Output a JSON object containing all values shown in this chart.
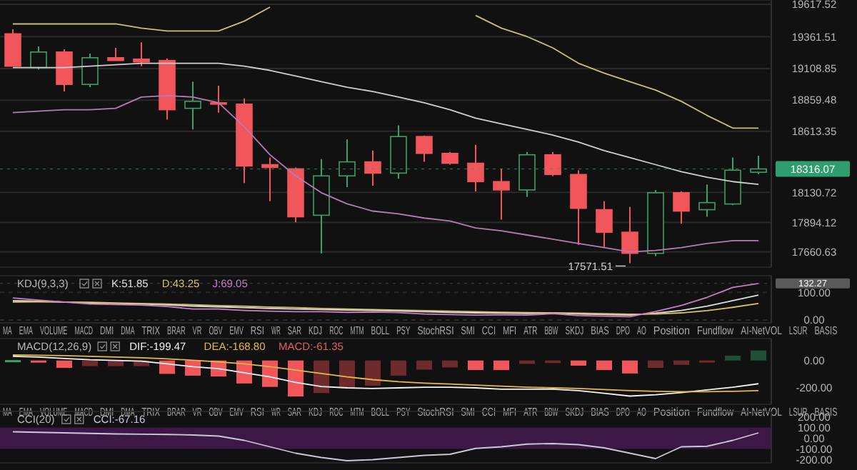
{
  "chart_data": [
    {
      "type": "candlestick",
      "categories": [
        null,
        null,
        null,
        null,
        null,
        null,
        null,
        null,
        null,
        null,
        null,
        null,
        null,
        null,
        null,
        null,
        null,
        null,
        null,
        null,
        null,
        null,
        null,
        null,
        null,
        null,
        null,
        null,
        null,
        null
      ],
      "ohlc": [
        [
          19384,
          19420,
          19128,
          19128
        ],
        [
          19117,
          19284,
          19100,
          19240
        ],
        [
          19240,
          19262,
          18928,
          18984
        ],
        [
          18984,
          19228,
          18962,
          19195
        ],
        [
          19195,
          19273,
          19173,
          19173
        ],
        [
          19184,
          19317,
          19128,
          19162
        ],
        [
          19173,
          19190,
          18706,
          18784
        ],
        [
          18795,
          19006,
          18628,
          18850
        ],
        [
          18839,
          18973,
          18761,
          18828
        ],
        [
          18828,
          18873,
          18205,
          18339
        ],
        [
          18350,
          18406,
          18061,
          18328
        ],
        [
          18317,
          18328,
          17894,
          17938
        ],
        [
          17950,
          18394,
          17649,
          18261
        ],
        [
          18261,
          18550,
          18172,
          18372
        ],
        [
          18372,
          18461,
          18183,
          18283
        ],
        [
          18283,
          18661,
          18239,
          18572
        ],
        [
          18572,
          18580,
          18372,
          18439
        ],
        [
          18439,
          18450,
          18350,
          18361
        ],
        [
          18361,
          18506,
          18139,
          18216
        ],
        [
          18216,
          18317,
          17916,
          18150
        ],
        [
          18150,
          18450,
          18094,
          18428
        ],
        [
          18428,
          18450,
          18260,
          18272
        ],
        [
          18272,
          18306,
          17716,
          18005
        ],
        [
          17994,
          18061,
          17694,
          17816
        ],
        [
          17816,
          18016,
          17571.51,
          17649
        ],
        [
          17649,
          18150,
          17627,
          18128
        ],
        [
          18128,
          18140,
          17883,
          17983
        ],
        [
          17994,
          18194,
          17938,
          18050
        ],
        [
          18039,
          18406,
          18030,
          18306
        ],
        [
          18290,
          18420,
          18275,
          18316.07
        ]
      ],
      "colors": [
        "#f0565a",
        "#3f9e6a",
        "#f0565a",
        "#3f9e6a",
        "#f0565a",
        "#f0565a",
        "#f0565a",
        "#3f9e6a",
        "#f0565a",
        "#f0565a",
        "#f0565a",
        "#f0565a",
        "#3f9e6a",
        "#3f9e6a",
        "#f0565a",
        "#3f9e6a",
        "#f0565a",
        "#f0565a",
        "#f0565a",
        "#f0565a",
        "#3f9e6a",
        "#f0565a",
        "#f0565a",
        "#f0565a",
        "#f0565a",
        "#3f9e6a",
        "#f0565a",
        "#3f9e6a",
        "#3f9e6a",
        "#3f9e6a"
      ],
      "series": [
        {
          "type": "line",
          "color": "#c9bf78",
          "values": [
            19462,
            19462,
            19462,
            19462,
            19462,
            19429,
            19406,
            19406,
            19406,
            19484,
            19595,
            null,
            null,
            null,
            null,
            null,
            null,
            null,
            19529,
            19429,
            19362,
            19273,
            19151,
            19073,
            19006,
            18939,
            18850,
            18739,
            18639,
            18639
          ]
        },
        {
          "type": "line",
          "color": "#cfcfcf",
          "values": [
            19117,
            19117,
            19117,
            19128,
            19140,
            19151,
            19151,
            19151,
            19151,
            19128,
            19095,
            19050,
            19006,
            18962,
            18928,
            18884,
            18839,
            18784,
            18717,
            18673,
            18628,
            18584,
            18528,
            18461,
            18406,
            18350,
            18294,
            18250,
            18216,
            18194
          ]
        },
        {
          "type": "line",
          "color": "#b77ab7",
          "values": [
            18761,
            18773,
            18784,
            18784,
            18795,
            18884,
            18895,
            18884,
            18839,
            18650,
            18428,
            18261,
            18128,
            18040,
            17983,
            17961,
            17928,
            17905,
            17850,
            17827,
            17794,
            17761,
            17727,
            17694,
            17661,
            17672,
            17694,
            17727,
            17749,
            17749
          ]
        }
      ],
      "ylim": [
        17540,
        19651
      ],
      "yticks": [
        19617.52,
        19361.51,
        19108.85,
        18859.48,
        18613.35,
        18130.72,
        17894.12,
        17660.63
      ],
      "ref_lines": [
        {
          "axis": "y",
          "value": 18316.07,
          "label": "18316.07",
          "color": "#2e9e6e"
        }
      ],
      "annotations": [
        "17571.51"
      ],
      "grid": "y"
    },
    {
      "type": "line",
      "title": "KDJ(9,3,3)",
      "categories": [
        null,
        null,
        null,
        null,
        null,
        null,
        null,
        null,
        null,
        null,
        null,
        null,
        null,
        null,
        null,
        null,
        null,
        null,
        null,
        null,
        null,
        null,
        null,
        null,
        null,
        null,
        null,
        null,
        null,
        null
      ],
      "series": [
        {
          "color": "#e0e0e0",
          "values": [
            70,
            68,
            65,
            62,
            60,
            58,
            55,
            50,
            48,
            45,
            42,
            40,
            38,
            36,
            35,
            33,
            30,
            28,
            26,
            25,
            24,
            25,
            22,
            20,
            18,
            25,
            35,
            50,
            70,
            90
          ]
        },
        {
          "color": "#d8c36a",
          "values": [
            65,
            66,
            65,
            64,
            62,
            60,
            58,
            55,
            52,
            50,
            47,
            45,
            42,
            40,
            38,
            36,
            34,
            32,
            30,
            28,
            27,
            26,
            25,
            23,
            21,
            22,
            26,
            34,
            46,
            60
          ]
        },
        {
          "color": "#c77dc7",
          "values": [
            80,
            72,
            65,
            58,
            56,
            54,
            49,
            40,
            40,
            35,
            32,
            30,
            30,
            28,
            29,
            27,
            22,
            20,
            18,
            19,
            18,
            23,
            16,
            14,
            12,
            31,
            53,
            82,
            118,
            132.27
          ]
        }
      ],
      "ylim": [
        -10,
        160
      ],
      "yticks": [
        {
          "value": 100,
          "label": "100.00"
        },
        {
          "value": 0,
          "label": "0.00"
        }
      ],
      "ref_lines": [
        {
          "axis": "y",
          "value": 132.27,
          "label": "132.27",
          "color": "#5a5a5a"
        }
      ],
      "annotations": [
        "K:51.85",
        "D:43.25",
        "J:69.05"
      ],
      "grid": "y"
    },
    {
      "type": "other",
      "annotations": [
        "MA",
        "EMA",
        "VOLUME",
        "MACD",
        "DMI",
        "DMA",
        "TRIX",
        "BRAR",
        "VR",
        "OBV",
        "EMV",
        "RSI",
        "WR",
        "SAR",
        "KDJ",
        "ROC",
        "MTM",
        "BOLL",
        "PSY",
        "StochRSI",
        "SMI",
        "CCI",
        "MFI",
        "ATR",
        "BBW",
        "SKDJ",
        "BIAS",
        "DPO",
        "AO",
        "Position",
        "Fundflow",
        "AI-NetVOL",
        "LSUR",
        "BASIS"
      ]
    },
    {
      "type": "bar",
      "categories": [
        null,
        null,
        null,
        null,
        null,
        null,
        null,
        null,
        null,
        null,
        null,
        null,
        null,
        null,
        null,
        null,
        null,
        null,
        null,
        null,
        null,
        null,
        null,
        null,
        null,
        null,
        null,
        null,
        null,
        null
      ],
      "series": [
        {
          "colors": [
            "#3f9e6a",
            "#f0565a",
            "#f0565a",
            "#6e2a2c",
            "#6e2a2c",
            "#6e2a2c",
            "#f0565a",
            "#f0565a",
            "#f0565a",
            "#f0565a",
            "#f0565a",
            "#f0565a",
            "#6e2a2c",
            "#6e2a2c",
            "#6e2a2c",
            "#6e2a2c",
            "#6e2a2c",
            "#6e2a2c",
            "#f0565a",
            "#f0565a",
            "#6e2a2c",
            "#6e2a2c",
            "#f0565a",
            "#f0565a",
            "#f0565a",
            "#6e2a2c",
            "#6e2a2c",
            "#6e2a2c",
            "#1f5037",
            "#1f5037"
          ],
          "values": [
            3,
            -3,
            -54,
            -41,
            -41,
            -41,
            -98,
            -111,
            -117,
            -168,
            -193,
            -263,
            -238,
            -200,
            -184,
            -111,
            -67,
            -51,
            -70,
            -70,
            -25,
            -19,
            -38,
            -70,
            -95,
            -54,
            -32,
            -6,
            35,
            73
          ]
        },
        {
          "type": "line",
          "color": "#f4f4f4",
          "values": [
            30,
            25,
            15,
            5,
            0,
            -5,
            -25,
            -45,
            -60,
            -90,
            -120,
            -160,
            -190,
            -200,
            -205,
            -200,
            -195,
            -195,
            -200,
            -210,
            -210,
            -210,
            -220,
            -240,
            -260,
            -250,
            -235,
            -215,
            -195,
            -170
          ]
        },
        {
          "type": "line",
          "color": "#e6b84a",
          "values": [
            40,
            38,
            35,
            30,
            25,
            20,
            12,
            2,
            -10,
            -25,
            -45,
            -70,
            -95,
            -120,
            -140,
            -155,
            -165,
            -172,
            -180,
            -188,
            -195,
            -200,
            -205,
            -212,
            -220,
            -225,
            -228,
            -228,
            -225,
            -220
          ]
        }
      ],
      "title": "MACD(12,26,9)",
      "ylim": [
        -320,
        160
      ],
      "yticks": [
        {
          "value": 0,
          "label": "0.00"
        },
        {
          "value": -200,
          "label": "-200.00"
        }
      ],
      "annotations": [
        "DIF:-199.47",
        "DEA:-168.80",
        "MACD:-61.35"
      ]
    },
    {
      "type": "other",
      "annotations": [
        "MA",
        "EMA",
        "VOLUME",
        "MACD",
        "DMI",
        "DMA",
        "TRIX",
        "BRAR",
        "VR",
        "OBV",
        "EMV",
        "RSI",
        "WR",
        "SAR",
        "KDJ",
        "ROC",
        "MTM",
        "BOLL",
        "PSY",
        "StochRSI",
        "SMI",
        "CCI",
        "MFI",
        "ATR",
        "BBW",
        "SKDJ",
        "BIAS",
        "DPO",
        "AO",
        "Position",
        "Fundflow",
        "AI-NetVOL",
        "LSUR",
        "BASIS"
      ]
    },
    {
      "type": "line",
      "title": "CCI(20)",
      "categories": [
        null,
        null,
        null,
        null,
        null,
        null,
        null,
        null,
        null,
        null,
        null,
        null,
        null,
        null,
        null,
        null,
        null,
        null,
        null,
        null,
        null,
        null,
        null,
        null,
        null,
        null,
        null,
        null,
        null,
        null
      ],
      "series": [
        {
          "color": "#c8c8d8",
          "values": [
            60,
            55,
            50,
            45,
            40,
            38,
            35,
            30,
            20,
            -20,
            -80,
            -140,
            -180,
            -210,
            -200,
            -180,
            -160,
            -150,
            -95,
            -80,
            -55,
            -50,
            -60,
            -90,
            -140,
            -190,
            -80,
            -75,
            -20,
            50
          ]
        }
      ],
      "bands": [
        {
          "axis": "y",
          "from": -100,
          "to": 100,
          "color": "#3d1746"
        }
      ],
      "ylim": [
        -230,
        250
      ],
      "yticks": [
        {
          "value": 200,
          "label": "200.00"
        },
        {
          "value": 100,
          "label": "100.00"
        },
        {
          "value": 0,
          "label": "0.00"
        },
        {
          "value": -100,
          "label": "-100.00"
        },
        {
          "value": -200,
          "label": "-200.00"
        }
      ],
      "annotations": [
        "CCI:-67.16"
      ]
    }
  ]
}
